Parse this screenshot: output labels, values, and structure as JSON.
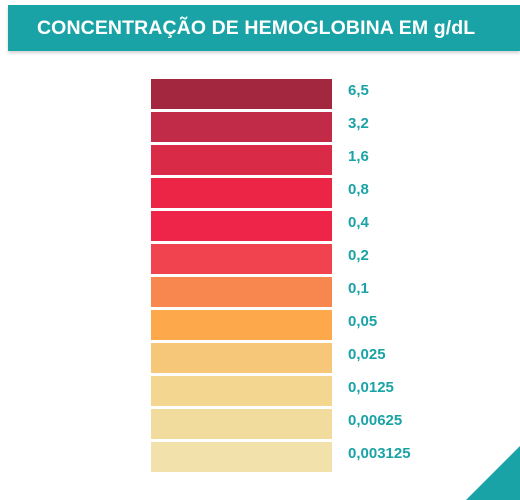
{
  "header": {
    "title": "CONCENTRAÇÃO DE HEMOGLOBINA EM g/dL"
  },
  "scale": {
    "rows": [
      {
        "label": "6,5",
        "color": "#a3283f"
      },
      {
        "label": "3,2",
        "color": "#c22b47"
      },
      {
        "label": "1,6",
        "color": "#d92b48"
      },
      {
        "label": "0,8",
        "color": "#ec2547"
      },
      {
        "label": "0,4",
        "color": "#ee2448"
      },
      {
        "label": "0,2",
        "color": "#f1434f"
      },
      {
        "label": "0,1",
        "color": "#f8874f"
      },
      {
        "label": "0,05",
        "color": "#fda84a"
      },
      {
        "label": "0,025",
        "color": "#f6c679"
      },
      {
        "label": "0,0125",
        "color": "#f3d68f"
      },
      {
        "label": "0,00625",
        "color": "#f1dc9d"
      },
      {
        "label": "0,003125",
        "color": "#f2e1ab"
      }
    ]
  },
  "decoration": {
    "corner_color": "#1aa3a6"
  }
}
